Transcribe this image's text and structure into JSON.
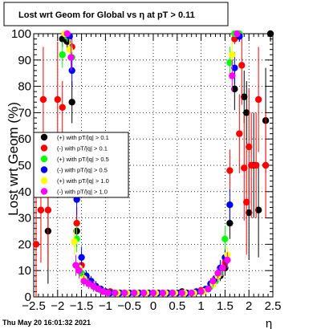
{
  "footer": {
    "timestamp": "Thu May 20 16:01:32 2021"
  },
  "chart_data": {
    "type": "scatter",
    "title": "Lost wrt Geom for Global vs  η at pT > 0.11",
    "xlabel": "η",
    "ylabel": "Lost wrt Geom (%)",
    "xlim": [
      -2.5,
      2.5
    ],
    "ylim": [
      0,
      100
    ],
    "x_ticks": [
      -2.5,
      -2,
      -1.5,
      -1,
      -0.5,
      0,
      0.5,
      1,
      1.5,
      2,
      2.5
    ],
    "x_tick_labels": [
      "−2.5",
      "−2",
      "−1.5",
      "−1",
      "−0.5",
      "0",
      "0.5",
      "1",
      "1.5",
      "2",
      "2.5"
    ],
    "y_ticks": [
      0,
      10,
      20,
      30,
      40,
      50,
      60,
      70,
      80,
      90,
      100
    ],
    "y_tick_labels": [
      "0",
      "10",
      "20",
      "30",
      "40",
      "50",
      "60",
      "70",
      "80",
      "90",
      "100"
    ],
    "grid": true,
    "legend_position": "left",
    "series": [
      {
        "name": "(+) with pT/|q| > 0.1",
        "color": "#000000",
        "points": [
          [
            -2.2,
            25,
            20
          ],
          [
            -1.9,
            98,
            3
          ],
          [
            -1.8,
            97,
            3
          ],
          [
            -1.7,
            74,
            8
          ],
          [
            -1.6,
            25,
            6
          ],
          [
            -1.5,
            9,
            3
          ],
          [
            -1.4,
            6,
            2
          ],
          [
            -1.3,
            5,
            2
          ],
          [
            -1.2,
            4,
            2
          ],
          [
            -1.1,
            3,
            1
          ],
          [
            -1.0,
            2,
            1
          ],
          [
            -0.9,
            2,
            1
          ],
          [
            -0.8,
            1.5,
            1
          ],
          [
            -0.6,
            1.5,
            1
          ],
          [
            -0.4,
            1.5,
            1
          ],
          [
            -0.2,
            1.5,
            1
          ],
          [
            0.0,
            1.5,
            1
          ],
          [
            0.2,
            1.5,
            1
          ],
          [
            0.4,
            1.5,
            1
          ],
          [
            0.6,
            2,
            1
          ],
          [
            0.8,
            1.5,
            1
          ],
          [
            1.0,
            2,
            1
          ],
          [
            1.1,
            3,
            1
          ],
          [
            1.2,
            4,
            2
          ],
          [
            1.3,
            6,
            2
          ],
          [
            1.4,
            8,
            2
          ],
          [
            1.5,
            11,
            3
          ],
          [
            1.6,
            28,
            6
          ],
          [
            1.7,
            79,
            8
          ],
          [
            1.8,
            99,
            2
          ],
          [
            1.9,
            76,
            10
          ],
          [
            1.95,
            70,
            12
          ],
          [
            2.0,
            32,
            18
          ],
          [
            2.1,
            50,
            20
          ],
          [
            2.2,
            33,
            18
          ],
          [
            2.35,
            67,
            20
          ],
          [
            2.45,
            100,
            3
          ]
        ]
      },
      {
        "name": "(-) with pT/|q| > 0.1",
        "color": "#ff0000",
        "points": [
          [
            -2.45,
            20,
            20
          ],
          [
            -2.35,
            33,
            20
          ],
          [
            -2.3,
            75,
            20
          ],
          [
            -2.2,
            33,
            22
          ],
          [
            -2.0,
            75,
            22
          ],
          [
            -1.9,
            72,
            10
          ],
          [
            -1.8,
            99,
            2
          ],
          [
            -1.7,
            95,
            5
          ],
          [
            -1.6,
            28,
            6
          ],
          [
            -1.5,
            12,
            3
          ],
          [
            -1.4,
            7,
            2
          ],
          [
            -1.3,
            5,
            2
          ],
          [
            -1.2,
            4,
            2
          ],
          [
            -1.1,
            3,
            1
          ],
          [
            -1.0,
            2,
            1
          ],
          [
            -0.9,
            2,
            1
          ],
          [
            -0.7,
            1.5,
            1
          ],
          [
            -0.5,
            1.5,
            1
          ],
          [
            -0.3,
            1.5,
            1
          ],
          [
            -0.1,
            1.5,
            1
          ],
          [
            0.1,
            1.5,
            1
          ],
          [
            0.3,
            1.5,
            1
          ],
          [
            0.5,
            1.5,
            1
          ],
          [
            0.7,
            1.5,
            1
          ],
          [
            0.9,
            2,
            1
          ],
          [
            1.0,
            2.5,
            1
          ],
          [
            1.1,
            3,
            1
          ],
          [
            1.2,
            5,
            2
          ],
          [
            1.3,
            7,
            2
          ],
          [
            1.4,
            10,
            3
          ],
          [
            1.5,
            13,
            3
          ],
          [
            1.6,
            48,
            8
          ],
          [
            1.7,
            98,
            2
          ],
          [
            1.8,
            62,
            15
          ],
          [
            1.85,
            88,
            15
          ],
          [
            1.9,
            49,
            20
          ],
          [
            1.95,
            36,
            20
          ],
          [
            2.0,
            57,
            22
          ],
          [
            2.05,
            50,
            20
          ],
          [
            2.15,
            50,
            20
          ],
          [
            2.2,
            75,
            20
          ],
          [
            2.35,
            50,
            20
          ]
        ]
      },
      {
        "name": "(+) with pT/|q| > 0.5",
        "color": "#00ff00",
        "points": [
          [
            -1.9,
            92,
            5
          ],
          [
            -1.8,
            99,
            2
          ],
          [
            -1.7,
            91,
            5
          ],
          [
            -1.6,
            22,
            5
          ],
          [
            -1.5,
            9,
            3
          ],
          [
            -1.4,
            6,
            2
          ],
          [
            -1.3,
            5,
            2
          ],
          [
            -1.2,
            3.5,
            1
          ],
          [
            -1.1,
            2.5,
            1
          ],
          [
            -1.0,
            2,
            1
          ],
          [
            -0.9,
            1.5,
            1
          ],
          [
            -0.8,
            1.5,
            1
          ],
          [
            -0.6,
            1.5,
            1
          ],
          [
            -0.4,
            1.5,
            1
          ],
          [
            -0.2,
            1.5,
            1
          ],
          [
            0.0,
            1.5,
            1
          ],
          [
            0.2,
            1.5,
            1
          ],
          [
            0.4,
            1.5,
            1
          ],
          [
            0.6,
            1.5,
            1
          ],
          [
            0.8,
            1.5,
            1
          ],
          [
            1.0,
            2,
            1
          ],
          [
            1.1,
            3,
            1
          ],
          [
            1.2,
            4,
            2
          ],
          [
            1.3,
            6,
            2
          ],
          [
            1.4,
            9,
            2
          ],
          [
            1.5,
            22,
            5
          ],
          [
            1.6,
            89,
            6
          ],
          [
            1.7,
            100,
            1
          ],
          [
            1.8,
            100,
            1
          ]
        ]
      },
      {
        "name": "(-) with pT/|q| > 0.5",
        "color": "#0000ff",
        "points": [
          [
            -1.85,
            100,
            1
          ],
          [
            -1.75,
            99,
            2
          ],
          [
            -1.7,
            86,
            6
          ],
          [
            -1.6,
            37,
            6
          ],
          [
            -1.5,
            15,
            4
          ],
          [
            -1.4,
            8,
            2
          ],
          [
            -1.3,
            6,
            2
          ],
          [
            -1.2,
            4,
            2
          ],
          [
            -1.1,
            3,
            1
          ],
          [
            -1.0,
            2,
            1
          ],
          [
            -0.9,
            1.5,
            1
          ],
          [
            -0.7,
            1.5,
            1
          ],
          [
            -0.5,
            1.5,
            1
          ],
          [
            -0.3,
            1.5,
            1
          ],
          [
            -0.1,
            1.5,
            1
          ],
          [
            0.1,
            1.5,
            1
          ],
          [
            0.3,
            1.5,
            1
          ],
          [
            0.5,
            1.5,
            1
          ],
          [
            0.7,
            1.5,
            1
          ],
          [
            0.9,
            2,
            1
          ],
          [
            1.1,
            3,
            1
          ],
          [
            1.2,
            5,
            2
          ],
          [
            1.3,
            7,
            2
          ],
          [
            1.4,
            11,
            3
          ],
          [
            1.5,
            15,
            3
          ],
          [
            1.6,
            35,
            6
          ],
          [
            1.7,
            87,
            6
          ],
          [
            1.8,
            99,
            2
          ]
        ]
      },
      {
        "name": "(+) with pT/|q| > 1.0",
        "color": "#ffff00",
        "points": [
          [
            -1.85,
            100,
            1
          ],
          [
            -1.75,
            94,
            4
          ],
          [
            -1.65,
            21,
            5
          ],
          [
            -1.55,
            11,
            3
          ],
          [
            -1.45,
            7,
            2
          ],
          [
            -1.35,
            5,
            2
          ],
          [
            -1.25,
            4,
            2
          ],
          [
            -1.15,
            3,
            1
          ],
          [
            -1.05,
            2,
            1
          ],
          [
            -0.95,
            1.5,
            1
          ],
          [
            -0.75,
            1.5,
            1
          ],
          [
            -0.55,
            1.5,
            1
          ],
          [
            -0.35,
            1.5,
            1
          ],
          [
            -0.15,
            1.5,
            1
          ],
          [
            0.05,
            1.5,
            1
          ],
          [
            0.25,
            1.5,
            1
          ],
          [
            0.45,
            1.5,
            1
          ],
          [
            0.65,
            1.5,
            1
          ],
          [
            0.85,
            1.5,
            1
          ],
          [
            1.05,
            2,
            1
          ],
          [
            1.15,
            3,
            1
          ],
          [
            1.25,
            5,
            2
          ],
          [
            1.35,
            8,
            2
          ],
          [
            1.45,
            11,
            3
          ],
          [
            1.55,
            16,
            3
          ],
          [
            1.65,
            92,
            5
          ],
          [
            1.75,
            100,
            1
          ]
        ]
      },
      {
        "name": "(-) with pT/|q| > 1.0",
        "color": "#ff00ff",
        "points": [
          [
            -1.8,
            100,
            1
          ],
          [
            -1.72,
            91,
            5
          ],
          [
            -1.62,
            12,
            4
          ],
          [
            -1.55,
            10,
            3
          ],
          [
            -1.45,
            6,
            2
          ],
          [
            -1.35,
            5,
            2
          ],
          [
            -1.25,
            4,
            2
          ],
          [
            -1.15,
            3,
            1
          ],
          [
            -1.05,
            2,
            1
          ],
          [
            -0.95,
            1.5,
            1
          ],
          [
            -0.8,
            1.5,
            1
          ],
          [
            -0.6,
            1.5,
            1
          ],
          [
            -0.4,
            1.5,
            1
          ],
          [
            -0.2,
            1.5,
            1
          ],
          [
            0.0,
            1.5,
            1
          ],
          [
            0.2,
            1.5,
            1
          ],
          [
            0.4,
            1.5,
            1
          ],
          [
            0.6,
            1.5,
            1
          ],
          [
            0.8,
            1.5,
            1
          ],
          [
            1.0,
            2,
            1
          ],
          [
            1.15,
            3,
            1
          ],
          [
            1.25,
            6,
            2
          ],
          [
            1.35,
            9,
            2
          ],
          [
            1.45,
            11,
            3
          ],
          [
            1.55,
            14,
            3
          ],
          [
            1.65,
            84,
            6
          ],
          [
            1.75,
            100,
            1
          ]
        ]
      }
    ]
  }
}
